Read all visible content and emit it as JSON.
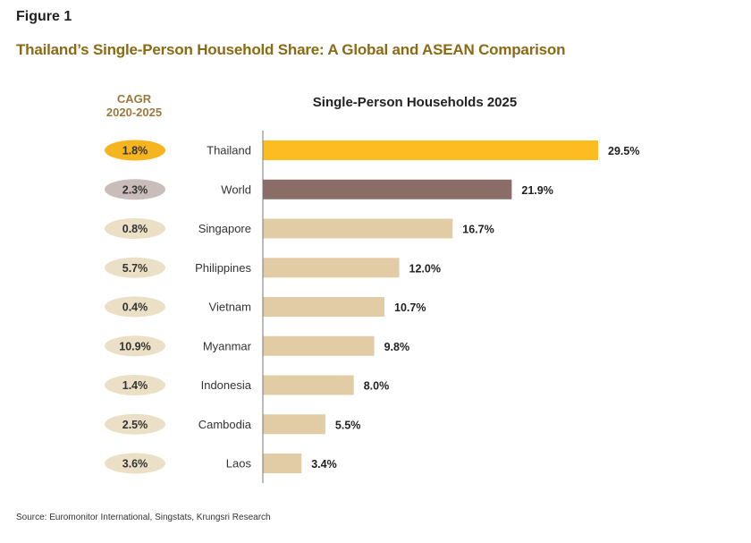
{
  "figure_label": "Figure 1",
  "title": "Thailand’s Single-Person Household Share: A Global and ASEAN Comparison",
  "source": "Source: Euromonitor International, Singstats, Krungsri Research",
  "chart_data": {
    "type": "bar",
    "orientation": "horizontal",
    "title": "Single-Person Households 2025",
    "cagr_header": [
      "CAGR",
      "2020-2025"
    ],
    "categories": [
      "Thailand",
      "World",
      "Singapore",
      "Philippines",
      "Vietnam",
      "Myanmar",
      "Indonesia",
      "Cambodia",
      "Laos"
    ],
    "values": [
      29.5,
      21.9,
      16.7,
      12.0,
      10.7,
      9.8,
      8.0,
      5.5,
      3.4
    ],
    "value_labels": [
      "29.5%",
      "21.9%",
      "16.7%",
      "12.0%",
      "10.7%",
      "9.8%",
      "8.0%",
      "5.5%",
      "3.4%"
    ],
    "cagr_labels": [
      "1.8%",
      "2.3%",
      "0.8%",
      "5.7%",
      "0.4%",
      "10.9%",
      "1.4%",
      "2.5%",
      "3.6%"
    ],
    "colors": {
      "highlight": "#fdbc21",
      "world": "#8a6d67",
      "other": "#e2cca5",
      "highlight_ellipse": "#f6b51e",
      "world_ellipse": "#c9bcba",
      "other_ellipse": "#ebdfc5"
    },
    "xlim": [
      0,
      29.5
    ]
  }
}
